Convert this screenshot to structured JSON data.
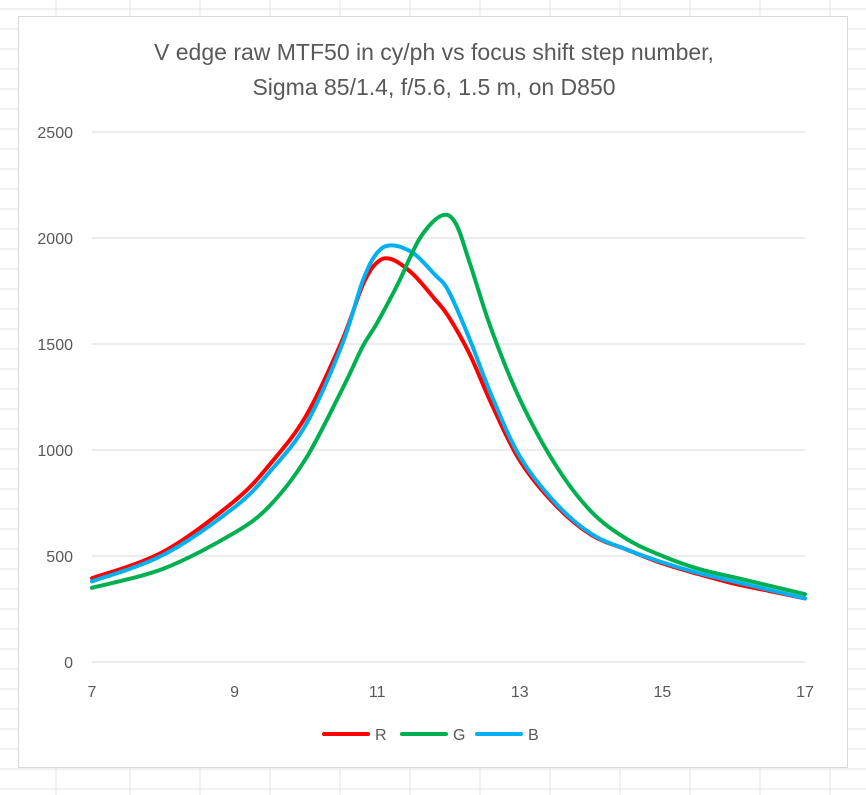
{
  "chart_data": {
    "type": "line",
    "title": [
      "V edge raw MTF50 in cy/ph vs focus shift step number,",
      "Sigma 85/1.4, f/5.6, 1.5 m, on D850"
    ],
    "xlabel": "",
    "ylabel": "",
    "xlim": [
      7,
      17
    ],
    "ylim": [
      0,
      2500
    ],
    "xticks": [
      "7",
      "9",
      "11",
      "13",
      "15",
      "17"
    ],
    "yticks": [
      "0",
      "500",
      "1000",
      "1500",
      "2000",
      "2500"
    ],
    "grid": "horizontal",
    "legend": "bottom",
    "smooth": true,
    "series": [
      {
        "name": "R",
        "color": "#ff0000",
        "x": [
          7,
          8,
          9,
          9.5,
          10,
          10.5,
          10.8,
          11,
          11.2,
          11.5,
          11.8,
          12,
          12.3,
          12.6,
          13,
          13.5,
          14,
          14.5,
          15,
          15.5,
          16,
          16.5,
          17
        ],
        "y": [
          395,
          520,
          760,
          935,
          1160,
          1510,
          1780,
          1885,
          1900,
          1830,
          1715,
          1630,
          1450,
          1220,
          950,
          740,
          600,
          530,
          465,
          415,
          370,
          335,
          300
        ]
      },
      {
        "name": "G",
        "color": "#00b050",
        "x": [
          7,
          8,
          9,
          9.5,
          10,
          10.5,
          10.8,
          11,
          11.3,
          11.6,
          11.9,
          12.1,
          12.3,
          12.6,
          13,
          13.5,
          14,
          14.5,
          15,
          15.5,
          16,
          16.5,
          17
        ],
        "y": [
          350,
          440,
          610,
          740,
          960,
          1280,
          1490,
          1600,
          1790,
          2000,
          2105,
          2070,
          1880,
          1570,
          1240,
          930,
          710,
          580,
          500,
          440,
          400,
          360,
          320
        ]
      },
      {
        "name": "B",
        "color": "#00b0f0",
        "x": [
          7,
          8,
          9,
          9.5,
          10,
          10.5,
          10.8,
          11,
          11.2,
          11.5,
          11.8,
          12,
          12.3,
          12.6,
          13,
          13.5,
          14,
          14.5,
          15,
          15.5,
          16,
          16.5,
          17
        ],
        "y": [
          380,
          505,
          730,
          900,
          1120,
          1490,
          1800,
          1930,
          1965,
          1930,
          1830,
          1750,
          1520,
          1260,
          970,
          750,
          605,
          530,
          470,
          420,
          380,
          340,
          300
        ]
      }
    ]
  }
}
